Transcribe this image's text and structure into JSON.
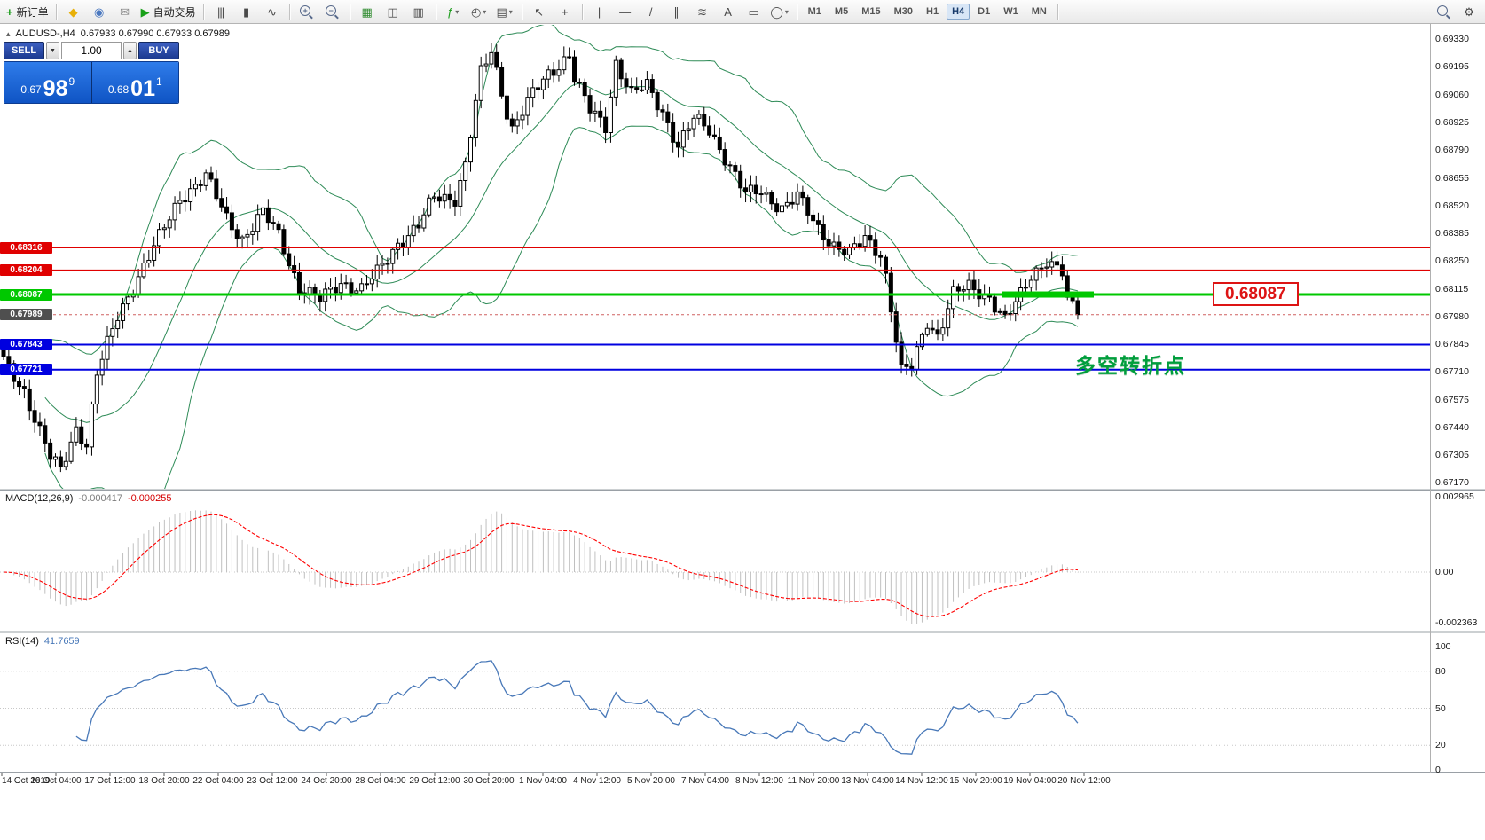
{
  "toolbar": {
    "items": [
      {
        "name": "new-order-button",
        "glyph": "+",
        "glyph_color": "#1e9e1e",
        "bold": true,
        "label": "新订单"
      },
      {
        "kind": "divider"
      },
      {
        "name": "metaeditor-icon",
        "glyph": "◆",
        "glyph_color": "#e8b008"
      },
      {
        "name": "market-watch-icon",
        "glyph": "◉",
        "glyph_color": "#4a78c0"
      },
      {
        "name": "alerts-icon",
        "glyph": "✉",
        "glyph_color": "#8a8a8a"
      },
      {
        "name": "autotrading-button",
        "glyph": "▶",
        "glyph_color": "#18a018",
        "label": "自动交易"
      },
      {
        "kind": "divider"
      },
      {
        "name": "bar-chart-mode-icon",
        "glyph": "|||"
      },
      {
        "name": "candlestick-mode-icon",
        "glyph": "▮"
      },
      {
        "name": "line-chart-mode-icon",
        "glyph": "∿"
      },
      {
        "kind": "divider"
      },
      {
        "name": "zoom-in-icon",
        "mag": "+"
      },
      {
        "name": "zoom-out-icon",
        "mag": "−"
      },
      {
        "kind": "divider"
      },
      {
        "name": "tile-windows-icon",
        "glyph": "▦",
        "glyph_color": "#2e8b2e"
      },
      {
        "name": "cascade-windows-icon",
        "glyph": "◫"
      },
      {
        "name": "arrange-windows-icon",
        "glyph": "▥"
      },
      {
        "kind": "divider"
      },
      {
        "name": "indicators-icon",
        "glyph": "ƒ",
        "glyph_color": "#1e9e1e",
        "dropdown": true
      },
      {
        "name": "periods-icon",
        "glyph": "◴",
        "dropdown": true
      },
      {
        "name": "templates-icon",
        "glyph": "▤",
        "dropdown": true
      },
      {
        "kind": "divider"
      },
      {
        "name": "cursor-icon",
        "glyph": "↖"
      },
      {
        "name": "crosshair-icon",
        "glyph": "+"
      },
      {
        "kind": "divider"
      },
      {
        "name": "vertical-line-icon",
        "glyph": "|"
      },
      {
        "name": "horizontal-line-icon",
        "glyph": "—"
      },
      {
        "name": "trendline-icon",
        "glyph": "/"
      },
      {
        "name": "equidistant-channel-icon",
        "glyph": "∥"
      },
      {
        "name": "fibonacci-icon",
        "glyph": "≋"
      },
      {
        "name": "text-icon",
        "glyph": "A"
      },
      {
        "name": "text-label-icon",
        "glyph": "▭"
      },
      {
        "name": "shapes-icon",
        "glyph": "◯",
        "dropdown": true
      },
      {
        "kind": "divider"
      },
      {
        "kind": "timeframes"
      },
      {
        "kind": "divider"
      },
      {
        "kind": "spacer"
      },
      {
        "name": "search-icon",
        "mag": ""
      },
      {
        "name": "settings-icon",
        "glyph": "⚙"
      }
    ],
    "timeframes": [
      "M1",
      "M5",
      "M15",
      "M30",
      "H1",
      "H4",
      "D1",
      "W1",
      "MN"
    ],
    "active_timeframe": "H4"
  },
  "chart": {
    "symbol": "AUDUSD-,H4",
    "symbol_icon": "▴",
    "ohlc": "0.67933 0.67990 0.67933 0.67989",
    "trade_panel": {
      "sell_label": "SELL",
      "buy_label": "BUY",
      "volume": "1.00",
      "spin_down": "▼",
      "spin_up": "▲",
      "bid": {
        "prefix": "0.67",
        "big": "98",
        "sup": "9"
      },
      "ask": {
        "prefix": "0.68",
        "big": "01",
        "sup": "1"
      }
    },
    "callout": {
      "text": "0.68087",
      "color": "#dd1414"
    },
    "annotation": {
      "text": "多空转折点",
      "color": "#009e3c"
    }
  },
  "chart_data": {
    "type": "candlestick",
    "symbol": "AUDUSD",
    "timeframe": "H4",
    "y_range": [
      0.67137,
      0.694
    ],
    "price_axis_ticks": [
      "0.69330",
      "0.69195",
      "0.69060",
      "0.68925",
      "0.68790",
      "0.68655",
      "0.68520",
      "0.68385",
      "0.68250",
      "0.68115",
      "0.67980",
      "0.67845",
      "0.67710",
      "0.67575",
      "0.67440",
      "0.67305",
      "0.67170"
    ],
    "time_axis_labels": [
      "14 Oct 2019",
      "16 Oct 04:00",
      "17 Oct 12:00",
      "18 Oct 20:00",
      "22 Oct 04:00",
      "23 Oct 12:00",
      "24 Oct 20:00",
      "28 Oct 04:00",
      "29 Oct 12:00",
      "30 Oct 20:00",
      "1 Nov 04:00",
      "4 Nov 12:00",
      "5 Nov 20:00",
      "7 Nov 04:00",
      "8 Nov 12:00",
      "11 Nov 20:00",
      "13 Nov 04:00",
      "14 Nov 12:00",
      "15 Nov 20:00",
      "19 Nov 04:00",
      "20 Nov 12:00"
    ],
    "levels": [
      {
        "price": 0.68316,
        "label": "0.68316",
        "color": "#e00000",
        "width": 2
      },
      {
        "price": 0.68204,
        "label": "0.68204",
        "color": "#e00000",
        "width": 2
      },
      {
        "price": 0.68087,
        "label": "0.68087",
        "color": "#00c800",
        "width": 3,
        "highlight_segment": true
      },
      {
        "price": 0.67843,
        "label": "0.67843",
        "color": "#0000e0",
        "width": 2
      },
      {
        "price": 0.67721,
        "label": "0.67721",
        "color": "#0000e0",
        "width": 2
      }
    ],
    "current_price": {
      "value": 0.67989,
      "label": "0.67989",
      "badge_color": "#4f4f4f"
    },
    "candles": {
      "count": 208,
      "style": {
        "bull": "#ffffff",
        "bear": "#000000",
        "border": "#000000"
      },
      "anchors": [
        [
          0,
          0.6776
        ],
        [
          4,
          0.6762
        ],
        [
          9,
          0.6729
        ],
        [
          11,
          0.6723
        ],
        [
          14,
          0.6744
        ],
        [
          16,
          0.6736
        ],
        [
          18,
          0.677
        ],
        [
          22,
          0.6798
        ],
        [
          26,
          0.6818
        ],
        [
          30,
          0.6836
        ],
        [
          34,
          0.6856
        ],
        [
          39,
          0.6866
        ],
        [
          43,
          0.6846
        ],
        [
          46,
          0.6836
        ],
        [
          50,
          0.6848
        ],
        [
          53,
          0.6838
        ],
        [
          57,
          0.6812
        ],
        [
          61,
          0.6806
        ],
        [
          65,
          0.6815
        ],
        [
          69,
          0.6811
        ],
        [
          72,
          0.6819
        ],
        [
          76,
          0.6834
        ],
        [
          80,
          0.6842
        ],
        [
          83,
          0.6856
        ],
        [
          87,
          0.6856
        ],
        [
          89,
          0.6872
        ],
        [
          92,
          0.6916
        ],
        [
          94,
          0.6927
        ],
        [
          97,
          0.6898
        ],
        [
          98,
          0.689
        ],
        [
          102,
          0.6906
        ],
        [
          105,
          0.6916
        ],
        [
          109,
          0.6926
        ],
        [
          110,
          0.6914
        ],
        [
          113,
          0.6898
        ],
        [
          116,
          0.6891
        ],
        [
          118,
          0.6922
        ],
        [
          121,
          0.6906
        ],
        [
          124,
          0.691
        ],
        [
          127,
          0.6898
        ],
        [
          130,
          0.6881
        ],
        [
          133,
          0.6894
        ],
        [
          136,
          0.6889
        ],
        [
          139,
          0.6876
        ],
        [
          143,
          0.6857
        ],
        [
          146,
          0.6859
        ],
        [
          150,
          0.6851
        ],
        [
          153,
          0.6856
        ],
        [
          157,
          0.6841
        ],
        [
          160,
          0.6833
        ],
        [
          163,
          0.6828
        ],
        [
          166,
          0.6836
        ],
        [
          169,
          0.6829
        ],
        [
          170,
          0.6818
        ],
        [
          173,
          0.6771
        ],
        [
          175,
          0.6773
        ],
        [
          178,
          0.6796
        ],
        [
          180,
          0.6789
        ],
        [
          183,
          0.6809
        ],
        [
          186,
          0.6812
        ],
        [
          190,
          0.6808
        ],
        [
          193,
          0.6796
        ],
        [
          196,
          0.6808
        ],
        [
          198,
          0.6818
        ],
        [
          201,
          0.6826
        ],
        [
          204,
          0.6819
        ],
        [
          205,
          0.6805
        ],
        [
          207,
          0.67989
        ]
      ]
    },
    "indicators": {
      "bollinger": {
        "period": 20,
        "deviation": 2,
        "color": "#2e8b57"
      },
      "macd": {
        "label": "MACD(12,26,9)",
        "values": [
          "-0.000417",
          "-0.000255"
        ],
        "scale": [
          "0.002965",
          "0.00",
          "-0.002363"
        ],
        "histogram_color": "#c0c0c0",
        "signal_color": "#ff0000"
      },
      "rsi": {
        "label": "RSI(14)",
        "value": "41.7659",
        "scale": [
          "100",
          "80",
          "50",
          "20",
          "0"
        ],
        "levels": [
          80,
          50,
          20
        ],
        "color": "#4878b8"
      }
    }
  }
}
